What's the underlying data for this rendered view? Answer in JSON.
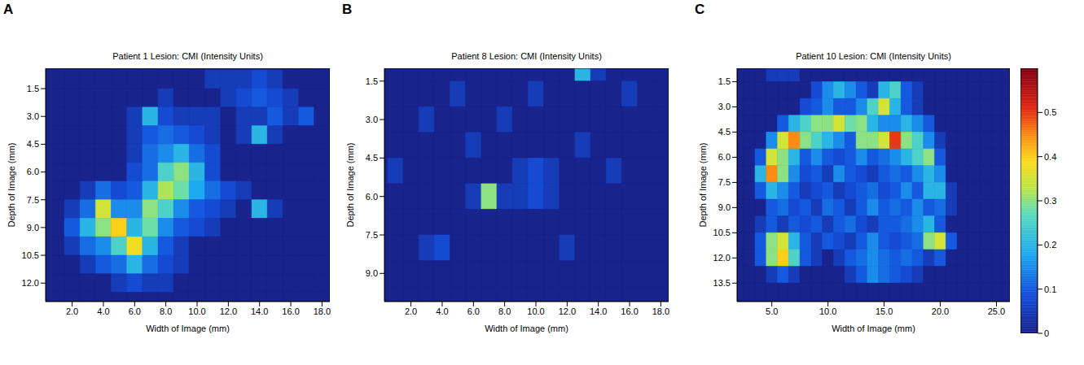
{
  "chart_data": [
    {
      "type": "heatmap",
      "panel": "A",
      "title": "Patient 1 Lesion: CMI (Intensity Units)",
      "x_label": "Width of Image (mm)",
      "y_label": "Depth of Image (mm)",
      "xlim": [
        0.3,
        18.5
      ],
      "xticks": [
        {
          "value": 2,
          "label": "2.0"
        },
        {
          "value": 4,
          "label": "4.0"
        },
        {
          "value": 6,
          "label": "6.0"
        },
        {
          "value": 8,
          "label": "8.0"
        },
        {
          "value": 10,
          "label": "10.0"
        },
        {
          "value": 12,
          "label": "12.0"
        },
        {
          "value": 14,
          "label": "14.0"
        },
        {
          "value": 16,
          "label": "16.0"
        },
        {
          "value": 18,
          "label": "18.0"
        }
      ],
      "ylim": [
        13.0,
        0.4
      ],
      "yticks": [
        1.5,
        {
          "value": 3,
          "label": "3.0"
        },
        4.5,
        {
          "value": 6,
          "label": "6.0"
        },
        7.5,
        {
          "value": 9,
          "label": "9.0"
        },
        10.5,
        {
          "value": 12,
          "label": "12.0"
        }
      ],
      "x": [
        1,
        2,
        3,
        4,
        5,
        6,
        7,
        8,
        9,
        10,
        11,
        12,
        13,
        14,
        15,
        16,
        17,
        18
      ],
      "y": [
        1,
        2,
        3,
        4,
        5,
        6,
        7,
        8,
        9,
        10,
        11,
        12,
        13
      ],
      "cells": [
        [
          0,
          0,
          0,
          0,
          0,
          0,
          0,
          0,
          0,
          0,
          0.05,
          0.05,
          0.05,
          0.08,
          0.05,
          0,
          0,
          0
        ],
        [
          0,
          0,
          0,
          0,
          0,
          0,
          0,
          0.05,
          0,
          0,
          0,
          0.05,
          0.08,
          0.1,
          0.08,
          0.05,
          0,
          0
        ],
        [
          0,
          0,
          0,
          0,
          0,
          0.05,
          0.2,
          0.08,
          0.05,
          0.05,
          0.05,
          0,
          0.05,
          0.05,
          0.1,
          0.05,
          0.1,
          0
        ],
        [
          0,
          0,
          0,
          0,
          0,
          0.05,
          0.1,
          0.12,
          0.1,
          0.08,
          0.05,
          0,
          0.05,
          0.2,
          0.05,
          0,
          0,
          0
        ],
        [
          0,
          0,
          0,
          0,
          0,
          0.05,
          0.12,
          0.15,
          0.2,
          0.12,
          0.08,
          0,
          0,
          0,
          0,
          0,
          0,
          0
        ],
        [
          0,
          0,
          0,
          0,
          0,
          0.08,
          0.12,
          0.25,
          0.3,
          0.2,
          0.08,
          0,
          0,
          0,
          0,
          0,
          0,
          0
        ],
        [
          0,
          0,
          0.05,
          0.12,
          0.08,
          0.1,
          0.2,
          0.32,
          0.28,
          0.18,
          0.12,
          0.08,
          0.05,
          0,
          0,
          0,
          0,
          0
        ],
        [
          0,
          0.05,
          0.12,
          0.35,
          0.15,
          0.15,
          0.3,
          0.25,
          0.15,
          0.1,
          0.08,
          0.05,
          0,
          0.2,
          0.05,
          0,
          0,
          0
        ],
        [
          0,
          0.1,
          0.2,
          0.3,
          0.4,
          0.2,
          0.28,
          0.15,
          0.1,
          0.08,
          0.05,
          0,
          0,
          0,
          0,
          0,
          0,
          0
        ],
        [
          0,
          0.05,
          0.12,
          0.15,
          0.25,
          0.38,
          0.2,
          0.1,
          0.05,
          0,
          0,
          0,
          0,
          0,
          0,
          0,
          0,
          0
        ],
        [
          0,
          0,
          0.05,
          0.1,
          0.12,
          0.2,
          0.12,
          0.08,
          0.05,
          0,
          0,
          0,
          0,
          0,
          0,
          0,
          0,
          0
        ],
        [
          0,
          0,
          0,
          0,
          0.05,
          0.08,
          0.05,
          0.05,
          0,
          0,
          0,
          0,
          0,
          0,
          0,
          0,
          0,
          0
        ],
        [
          0,
          0,
          0,
          0,
          0,
          0,
          0,
          0,
          0,
          0,
          0,
          0,
          0,
          0,
          0,
          0,
          0,
          0
        ]
      ]
    },
    {
      "type": "heatmap",
      "panel": "B",
      "title": "Patient 8 Lesion: CMI (Intensity Units)",
      "x_label": "Width of Image (mm)",
      "y_label": "Depth of Image (mm)",
      "xlim": [
        0.3,
        18.5
      ],
      "xticks": [
        {
          "value": 2,
          "label": "2.0"
        },
        {
          "value": 4,
          "label": "4.0"
        },
        {
          "value": 6,
          "label": "6.0"
        },
        {
          "value": 8,
          "label": "8.0"
        },
        {
          "value": 10,
          "label": "10.0"
        },
        {
          "value": 12,
          "label": "12.0"
        },
        {
          "value": 14,
          "label": "14.0"
        },
        {
          "value": 16,
          "label": "16.0"
        },
        {
          "value": 18,
          "label": "18.0"
        }
      ],
      "ylim": [
        10.1,
        1.0
      ],
      "yticks": [
        1.5,
        {
          "value": 3,
          "label": "3.0"
        },
        4.5,
        {
          "value": 6,
          "label": "6.0"
        },
        7.5,
        {
          "value": 9,
          "label": "9.0"
        }
      ],
      "x": [
        1,
        2,
        3,
        4,
        5,
        6,
        7,
        8,
        9,
        10,
        11,
        12,
        13,
        14,
        15,
        16,
        17,
        18
      ],
      "y": [
        1,
        2,
        3,
        4,
        5,
        6,
        7,
        8,
        9,
        10
      ],
      "cells": [
        [
          0,
          0,
          0,
          0,
          0,
          0,
          0,
          0,
          0,
          0,
          0,
          0,
          0.2,
          0.05,
          0,
          0,
          0,
          0
        ],
        [
          0,
          0,
          0,
          0,
          0.05,
          0,
          0,
          0,
          0,
          0.05,
          0,
          0,
          0,
          0,
          0,
          0.05,
          0,
          0
        ],
        [
          0,
          0,
          0.05,
          0,
          0,
          0,
          0,
          0.05,
          0,
          0,
          0,
          0,
          0,
          0,
          0,
          0,
          0,
          0
        ],
        [
          0,
          0,
          0,
          0,
          0,
          0.05,
          0,
          0,
          0,
          0,
          0,
          0,
          0.05,
          0,
          0,
          0,
          0,
          0
        ],
        [
          0.05,
          0,
          0,
          0,
          0,
          0,
          0,
          0,
          0.05,
          0.08,
          0.05,
          0,
          0,
          0,
          0.05,
          0,
          0,
          0
        ],
        [
          0,
          0,
          0,
          0,
          0,
          0.05,
          0.3,
          0.05,
          0.05,
          0.08,
          0.05,
          0,
          0,
          0,
          0,
          0,
          0,
          0
        ],
        [
          0,
          0,
          0,
          0,
          0,
          0,
          0,
          0,
          0,
          0,
          0,
          0,
          0,
          0,
          0,
          0,
          0,
          0
        ],
        [
          0,
          0,
          0.05,
          0.08,
          0,
          0,
          0,
          0,
          0,
          0,
          0,
          0.05,
          0,
          0,
          0,
          0,
          0,
          0
        ],
        [
          0,
          0,
          0,
          0,
          0,
          0,
          0,
          0,
          0,
          0,
          0,
          0,
          0,
          0,
          0,
          0,
          0,
          0
        ],
        [
          0,
          0,
          0,
          0,
          0,
          0,
          0,
          0,
          0,
          0,
          0,
          0,
          0,
          0,
          0,
          0,
          0,
          0
        ]
      ]
    },
    {
      "type": "heatmap",
      "panel": "C",
      "title": "Patient 10 Lesion: CMI (Intensity Units)",
      "x_label": "Width of Image (mm)",
      "y_label": "Depth of Image (mm)",
      "xlim": [
        1.9,
        26.2
      ],
      "xticks": [
        {
          "value": 5,
          "label": "5.0"
        },
        {
          "value": 10,
          "label": "10.0"
        },
        {
          "value": 15,
          "label": "15.0"
        },
        {
          "value": 20,
          "label": "20.0"
        },
        {
          "value": 25,
          "label": "25.0"
        }
      ],
      "ylim": [
        14.6,
        0.7
      ],
      "yticks": [
        1.5,
        {
          "value": 3,
          "label": "3.0"
        },
        4.5,
        {
          "value": 6,
          "label": "6.0"
        },
        7.5,
        {
          "value": 9,
          "label": "9.0"
        },
        10.5,
        {
          "value": 12,
          "label": "12.0"
        },
        13.5
      ],
      "x": [
        2,
        3,
        4,
        5,
        6,
        7,
        8,
        9,
        10,
        11,
        12,
        13,
        14,
        15,
        16,
        17,
        18,
        19,
        20,
        21,
        22,
        23,
        24,
        25,
        26
      ],
      "y": [
        1,
        2,
        3,
        4,
        5,
        6,
        7,
        8,
        9,
        10,
        11,
        12,
        13,
        14
      ],
      "cells": [
        [
          0,
          0,
          0,
          0.05,
          0.05,
          0.05,
          0,
          0,
          0,
          0,
          0,
          0,
          0,
          0,
          0,
          0,
          0,
          0,
          0,
          0,
          0,
          0,
          0,
          0,
          0
        ],
        [
          0,
          0,
          0,
          0,
          0,
          0,
          0,
          0.08,
          0.15,
          0.2,
          0.15,
          0.1,
          0.05,
          0.2,
          0.25,
          0.1,
          0.05,
          0,
          0,
          0,
          0,
          0,
          0,
          0,
          0
        ],
        [
          0,
          0,
          0,
          0,
          0,
          0,
          0.08,
          0.1,
          0.15,
          0.1,
          0.1,
          0.15,
          0.25,
          0.35,
          0.2,
          0.1,
          0.05,
          0,
          0,
          0,
          0,
          0,
          0,
          0,
          0
        ],
        [
          0,
          0,
          0,
          0,
          0.1,
          0.2,
          0.25,
          0.3,
          0.3,
          0.35,
          0.28,
          0.3,
          0.2,
          0.15,
          0.15,
          0.2,
          0.15,
          0.1,
          0,
          0,
          0,
          0,
          0,
          0,
          0
        ],
        [
          0,
          0,
          0,
          0.15,
          0.35,
          0.45,
          0.3,
          0.25,
          0.2,
          0.15,
          0.1,
          0.3,
          0.3,
          0.35,
          0.5,
          0.3,
          0.25,
          0.15,
          0.05,
          0,
          0,
          0,
          0,
          0,
          0
        ],
        [
          0,
          0,
          0.1,
          0.35,
          0.3,
          0.2,
          0.1,
          0.15,
          0.1,
          0.08,
          0.1,
          0.15,
          0.1,
          0.12,
          0.15,
          0.2,
          0.25,
          0.3,
          0.1,
          0,
          0,
          0,
          0,
          0,
          0
        ],
        [
          0,
          0,
          0.2,
          0.45,
          0.3,
          0.15,
          0.08,
          0.1,
          0.05,
          0.15,
          0.1,
          0.08,
          0.05,
          0.1,
          0.12,
          0.1,
          0.15,
          0.2,
          0.15,
          0,
          0,
          0,
          0,
          0,
          0
        ],
        [
          0,
          0,
          0.1,
          0.2,
          0.15,
          0.1,
          0.05,
          0.08,
          0.1,
          0.05,
          0.08,
          0.1,
          0.12,
          0.08,
          0.1,
          0.15,
          0.1,
          0.2,
          0.2,
          0.05,
          0,
          0,
          0,
          0,
          0
        ],
        [
          0,
          0,
          0,
          0.1,
          0.12,
          0.08,
          0.1,
          0.05,
          0.12,
          0.1,
          0.05,
          0.1,
          0.15,
          0.1,
          0.12,
          0.1,
          0.15,
          0.1,
          0.12,
          0.05,
          0,
          0,
          0,
          0,
          0
        ],
        [
          0,
          0,
          0.05,
          0.1,
          0.05,
          0.1,
          0.08,
          0.1,
          0.05,
          0.1,
          0.12,
          0.08,
          0.05,
          0.1,
          0.1,
          0.12,
          0.15,
          0.2,
          0.1,
          0,
          0,
          0,
          0,
          0,
          0
        ],
        [
          0,
          0,
          0.1,
          0.3,
          0.35,
          0.2,
          0.1,
          0.05,
          0.1,
          0.08,
          0.05,
          0.1,
          0.15,
          0.1,
          0.08,
          0.1,
          0.12,
          0.3,
          0.35,
          0.1,
          0,
          0,
          0,
          0,
          0
        ],
        [
          0,
          0,
          0.1,
          0.3,
          0.4,
          0.25,
          0.1,
          0.05,
          0,
          0.05,
          0.1,
          0.12,
          0.15,
          0.12,
          0.1,
          0.12,
          0.1,
          0.05,
          0.1,
          0,
          0,
          0,
          0,
          0,
          0
        ],
        [
          0,
          0,
          0,
          0.05,
          0.1,
          0.05,
          0,
          0,
          0,
          0,
          0.05,
          0.1,
          0.15,
          0.12,
          0.1,
          0.08,
          0.05,
          0,
          0,
          0,
          0,
          0,
          0,
          0,
          0
        ],
        [
          0,
          0,
          0,
          0,
          0,
          0,
          0,
          0,
          0,
          0,
          0,
          0,
          0,
          0,
          0,
          0,
          0,
          0,
          0,
          0,
          0,
          0,
          0,
          0,
          0
        ]
      ],
      "colorbar": {
        "range": [
          0,
          0.6
        ],
        "ticks": [
          0,
          0.1,
          0.2,
          0.3,
          0.4,
          0.5
        ]
      }
    }
  ]
}
